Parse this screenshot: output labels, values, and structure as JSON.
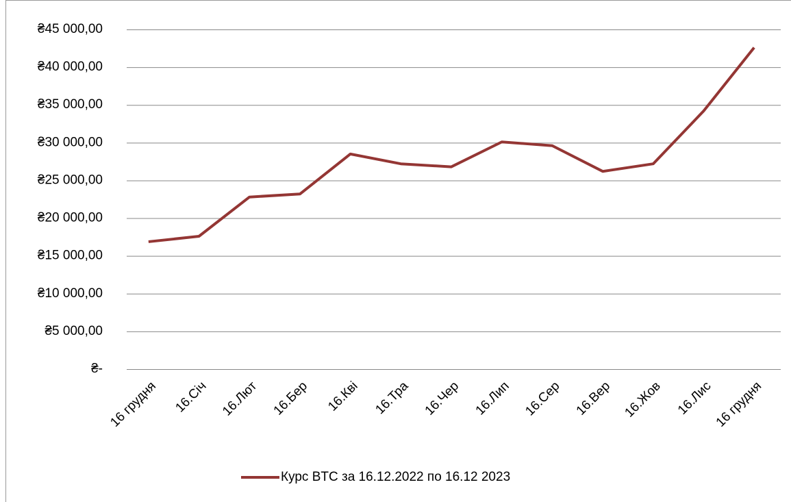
{
  "chart_data": {
    "type": "line",
    "categories": [
      "16 грудня",
      "16.Січ",
      "16.Лют",
      "16.Бер",
      "16.Кві",
      "16.Тра",
      "16.Чер",
      "16.Лип",
      "16.Сер",
      "16.Вер",
      "16.Жов",
      "16.Лис",
      "16 грудня"
    ],
    "series": [
      {
        "name": "Курс BTC за 16.12.2022 по 16.12 2023",
        "color": "#943634",
        "values": [
          16880,
          17600,
          22800,
          23200,
          28500,
          27200,
          26800,
          30100,
          29600,
          26200,
          27200,
          34200,
          42600
        ]
      }
    ],
    "ylim": [
      0,
      45000
    ],
    "yticks": [
      {
        "value": 0,
        "label": "₴-"
      },
      {
        "value": 5000,
        "label": "₴5 000,00"
      },
      {
        "value": 10000,
        "label": "₴10 000,00"
      },
      {
        "value": 15000,
        "label": "₴15 000,00"
      },
      {
        "value": 20000,
        "label": "₴20 000,00"
      },
      {
        "value": 25000,
        "label": "₴25 000,00"
      },
      {
        "value": 30000,
        "label": "₴30 000,00"
      },
      {
        "value": 35000,
        "label": "₴35 000,00"
      },
      {
        "value": 40000,
        "label": "₴40 000,00"
      },
      {
        "value": 45000,
        "label": "₴45 000,00"
      }
    ],
    "grid": true,
    "legend": "bottom"
  }
}
